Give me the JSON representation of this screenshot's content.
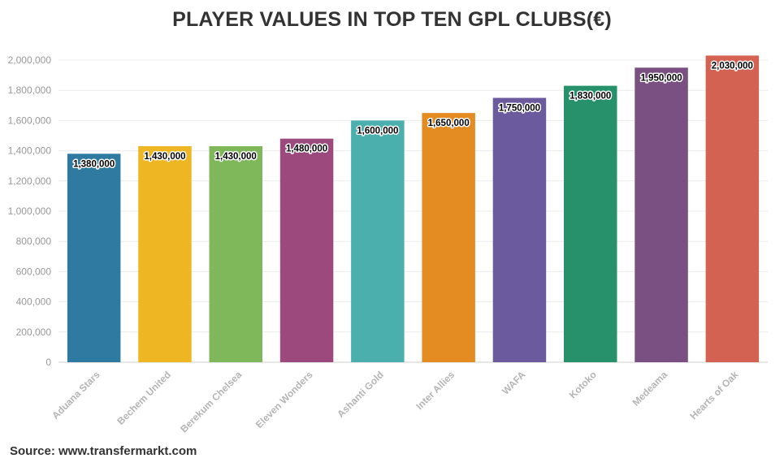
{
  "chart_data": {
    "type": "bar",
    "title": "PLAYER VALUES IN TOP TEN GPL CLUBS(€)",
    "xlabel": "",
    "ylabel": "",
    "categories": [
      "Aduana Stars",
      "Bechem United",
      "Berekum Chelsea",
      "Eleven Wonders",
      "Ashanti Gold",
      "Inter Allies",
      "WAFA",
      "Kotoko",
      "Medeama",
      "Hearts of Oak"
    ],
    "values": [
      1380000,
      1430000,
      1430000,
      1480000,
      1600000,
      1650000,
      1750000,
      1830000,
      1950000,
      2030000
    ],
    "value_labels": [
      "1,380,000",
      "1,430,000",
      "1,430,000",
      "1,480,000",
      "1,600,000",
      "1,650,000",
      "1,750,000",
      "1,830,000",
      "1,950,000",
      "2,030,000"
    ],
    "colors": [
      "#2e7aa1",
      "#efb624",
      "#7fb85a",
      "#9c4a7e",
      "#4aafad",
      "#e48c22",
      "#6b5a9e",
      "#26916a",
      "#7a5082",
      "#d46252"
    ],
    "ylim": [
      0,
      2000000
    ],
    "yticks": [
      0,
      200000,
      400000,
      600000,
      800000,
      1000000,
      1200000,
      1400000,
      1600000,
      1800000,
      2000000
    ],
    "ytick_labels": [
      "0",
      "200,000",
      "400,000",
      "600,000",
      "800,000",
      "1,000,000",
      "1,200,000",
      "1,400,000",
      "1,600,000",
      "1,800,000",
      "2,000,000"
    ],
    "grid": true,
    "legend": "none"
  },
  "source": "Source: www.transfermarkt.com"
}
